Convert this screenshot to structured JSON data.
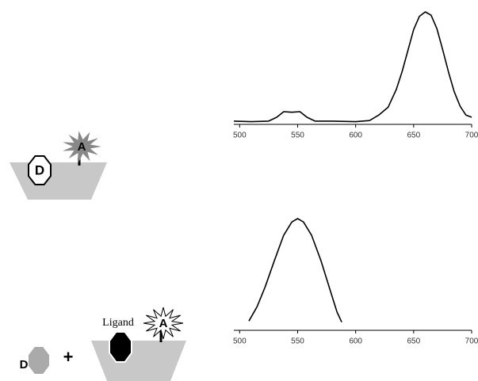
{
  "chart_data": [
    {
      "type": "line",
      "xlim": [
        495,
        700
      ],
      "ylim": [
        0,
        100
      ],
      "xticks": [
        500,
        550,
        600,
        650,
        700
      ],
      "series": [
        {
          "color": "#000000",
          "x": [
            495,
            510,
            525,
            532,
            538,
            545,
            552,
            558,
            565,
            580,
            600,
            612,
            620,
            628,
            635,
            640,
            645,
            650,
            655,
            660,
            665,
            670,
            675,
            680,
            685,
            690,
            695,
            700
          ],
          "values": [
            1.5,
            1,
            1.5,
            5,
            10,
            9.5,
            10,
            5,
            1.5,
            1.5,
            1,
            2,
            7,
            14,
            30,
            46,
            65,
            84,
            96,
            100,
            97,
            85,
            66,
            46,
            28,
            15,
            7,
            5
          ]
        }
      ]
    },
    {
      "type": "line",
      "xlim": [
        495,
        700
      ],
      "ylim": [
        0,
        100
      ],
      "xticks": [
        500,
        550,
        600,
        650,
        700
      ],
      "series": [
        {
          "color": "#000000",
          "x": [
            508,
            515,
            522,
            530,
            538,
            545,
            550,
            555,
            562,
            570,
            578,
            584,
            588
          ],
          "values": [
            7,
            20,
            38,
            62,
            85,
            97,
            100,
            97,
            85,
            62,
            35,
            15,
            6
          ]
        }
      ]
    }
  ],
  "diagrams": {
    "top": {
      "donor": "D",
      "acceptor": "A"
    },
    "bottom": {
      "donor": "D",
      "plus": "+",
      "ligand": "Ligand",
      "acceptor": "A"
    }
  }
}
